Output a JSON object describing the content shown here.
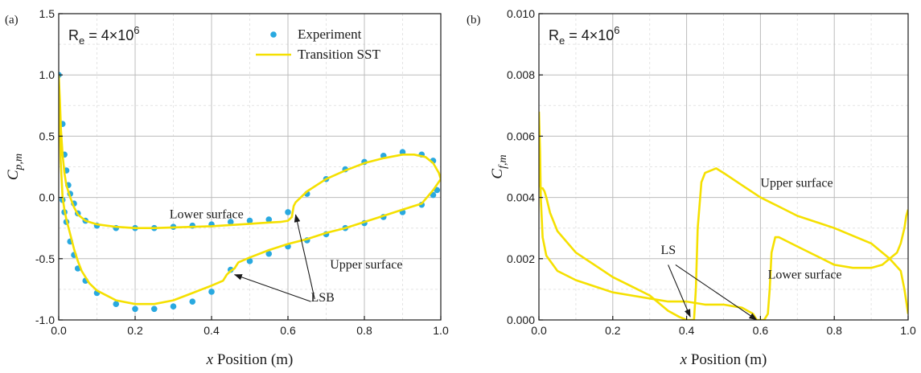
{
  "chart_data": [
    {
      "type": "line",
      "panel_label": "(a)",
      "annotation_re": "R_e = 4×10^6",
      "re_parts": {
        "base": "R",
        "sub": "e",
        "rest": " = 4×10",
        "sup": "6"
      },
      "xlabel_var": "x",
      "xlabel_rest": " Position (m)",
      "ylabel_var": "C",
      "ylabel_sub": "p,m",
      "xlim": [
        0.0,
        1.0
      ],
      "ylim": [
        -1.0,
        1.5
      ],
      "xticks": [
        0.0,
        0.2,
        0.4,
        0.6,
        0.8,
        1.0
      ],
      "xtick_labels": [
        "0.0",
        "0.2",
        "0.4",
        "0.6",
        "0.8",
        "1.0"
      ],
      "yticks": [
        -1.0,
        -0.5,
        0.0,
        0.5,
        1.0,
        1.5
      ],
      "ytick_labels": [
        "-1.0",
        "-0.5",
        "0.0",
        "0.5",
        "1.0",
        "1.5"
      ],
      "grid": true,
      "legend_position": "top-right",
      "series": [
        {
          "name": "Experiment",
          "kind": "scatter",
          "color": "#29a9e0",
          "x": [
            0.0,
            0.01,
            0.015,
            0.02,
            0.025,
            0.03,
            0.04,
            0.05,
            0.07,
            0.1,
            0.15,
            0.2,
            0.25,
            0.3,
            0.35,
            0.4,
            0.45,
            0.5,
            0.55,
            0.6,
            0.65,
            0.7,
            0.75,
            0.8,
            0.85,
            0.9,
            0.95,
            0.98,
            0.99,
            0.01,
            0.015,
            0.02,
            0.03,
            0.04,
            0.05,
            0.07,
            0.1,
            0.15,
            0.2,
            0.25,
            0.3,
            0.35,
            0.4,
            0.45,
            0.5,
            0.55,
            0.6,
            0.65,
            0.7,
            0.75,
            0.8,
            0.85,
            0.9,
            0.95,
            0.98
          ],
          "y": [
            1.0,
            0.6,
            0.35,
            0.22,
            0.1,
            0.03,
            -0.05,
            -0.13,
            -0.19,
            -0.23,
            -0.25,
            -0.25,
            -0.25,
            -0.24,
            -0.23,
            -0.22,
            -0.2,
            -0.19,
            -0.18,
            -0.12,
            0.03,
            0.15,
            0.23,
            0.29,
            0.34,
            0.37,
            0.35,
            0.3,
            0.06,
            -0.02,
            -0.12,
            -0.2,
            -0.36,
            -0.47,
            -0.58,
            -0.68,
            -0.78,
            -0.87,
            -0.91,
            -0.91,
            -0.89,
            -0.85,
            -0.77,
            -0.59,
            -0.52,
            -0.46,
            -0.4,
            -0.35,
            -0.3,
            -0.25,
            -0.21,
            -0.16,
            -0.12,
            -0.06,
            0.02
          ]
        },
        {
          "name": "Transition SST",
          "kind": "line",
          "color": "#f5e000",
          "x": [
            0.0,
            0.003,
            0.006,
            0.01,
            0.015,
            0.02,
            0.03,
            0.04,
            0.05,
            0.07,
            0.1,
            0.15,
            0.2,
            0.25,
            0.3,
            0.35,
            0.4,
            0.45,
            0.5,
            0.55,
            0.58,
            0.6,
            0.61,
            0.615,
            0.62,
            0.65,
            0.7,
            0.75,
            0.8,
            0.85,
            0.9,
            0.93,
            0.96,
            0.98,
            0.995,
            1.0,
            0.98,
            0.95,
            0.9,
            0.85,
            0.8,
            0.75,
            0.7,
            0.65,
            0.6,
            0.55,
            0.5,
            0.47,
            0.46,
            0.45,
            0.44,
            0.43,
            0.4,
            0.35,
            0.3,
            0.25,
            0.2,
            0.15,
            0.1,
            0.08,
            0.06,
            0.05,
            0.04,
            0.03,
            0.02,
            0.015,
            0.01,
            0.005,
            0.0
          ],
          "y": [
            1.0,
            0.8,
            0.55,
            0.35,
            0.2,
            0.1,
            0.0,
            -0.08,
            -0.14,
            -0.19,
            -0.22,
            -0.24,
            -0.25,
            -0.25,
            -0.245,
            -0.24,
            -0.235,
            -0.225,
            -0.215,
            -0.205,
            -0.2,
            -0.19,
            -0.16,
            -0.07,
            -0.04,
            0.05,
            0.15,
            0.22,
            0.28,
            0.32,
            0.35,
            0.35,
            0.33,
            0.28,
            0.2,
            0.15,
            0.06,
            -0.05,
            -0.1,
            -0.15,
            -0.2,
            -0.25,
            -0.29,
            -0.34,
            -0.38,
            -0.43,
            -0.49,
            -0.53,
            -0.58,
            -0.6,
            -0.63,
            -0.68,
            -0.72,
            -0.78,
            -0.84,
            -0.87,
            -0.87,
            -0.84,
            -0.76,
            -0.7,
            -0.6,
            -0.52,
            -0.42,
            -0.3,
            -0.18,
            -0.1,
            0.0,
            0.3,
            1.0
          ]
        }
      ],
      "annotations": [
        {
          "text": "Lower surface",
          "x": 0.29,
          "y": -0.17
        },
        {
          "text": "Upper surface",
          "x": 0.71,
          "y": -0.58
        },
        {
          "text": "LSB",
          "x": 0.66,
          "y": -0.85,
          "arrows": [
            {
              "from": [
                0.67,
                -0.83
              ],
              "to": [
                0.62,
                -0.14
              ]
            },
            {
              "from": [
                0.66,
                -0.85
              ],
              "to": [
                0.46,
                -0.63
              ]
            }
          ]
        }
      ]
    },
    {
      "type": "line",
      "panel_label": "(b)",
      "annotation_re": "R_e = 4×10^6",
      "re_parts": {
        "base": "R",
        "sub": "e",
        "rest": " = 4×10",
        "sup": "6"
      },
      "xlabel_var": "x",
      "xlabel_rest": " Position (m)",
      "ylabel_var": "C",
      "ylabel_sub": "f,m",
      "xlim": [
        0.0,
        1.0
      ],
      "ylim": [
        0.0,
        0.01
      ],
      "xticks": [
        0.0,
        0.2,
        0.4,
        0.6,
        0.8,
        1.0
      ],
      "xtick_labels": [
        "0.0",
        "0.2",
        "0.4",
        "0.6",
        "0.8",
        "1.0"
      ],
      "yticks": [
        0.0,
        0.002,
        0.004,
        0.006,
        0.008,
        0.01
      ],
      "ytick_labels": [
        "0.000",
        "0.002",
        "0.004",
        "0.006",
        "0.008",
        "0.010"
      ],
      "grid": true,
      "series": [
        {
          "name": "",
          "kind": "line",
          "color": "#f5e000",
          "x": [
            0.0,
            0.002,
            0.005,
            0.01,
            0.015,
            0.02,
            0.03,
            0.05,
            0.1,
            0.15,
            0.2,
            0.25,
            0.3,
            0.35,
            0.38,
            0.4,
            0.41,
            0.42,
            0.425,
            0.43,
            0.44,
            0.45,
            0.47,
            0.48,
            0.5,
            0.55,
            0.6,
            0.65,
            0.7,
            0.8,
            0.9,
            0.95,
            0.98,
            0.99,
            1.0
          ],
          "y": [
            0.006,
            0.0045,
            0.0043,
            0.0043,
            0.0042,
            0.004,
            0.0035,
            0.0029,
            0.0022,
            0.0018,
            0.0014,
            0.0011,
            0.0008,
            0.0003,
            0.0001,
            0.0,
            0.0,
            0.0,
            0.001,
            0.003,
            0.0045,
            0.0048,
            0.0049,
            0.00495,
            0.0048,
            0.0044,
            0.004,
            0.0037,
            0.0034,
            0.003,
            0.0025,
            0.002,
            0.0016,
            0.001,
            0.0002
          ]
        },
        {
          "name": "",
          "kind": "line",
          "color": "#f5e000",
          "x": [
            0.0,
            0.003,
            0.005,
            0.01,
            0.02,
            0.05,
            0.1,
            0.15,
            0.2,
            0.25,
            0.3,
            0.35,
            0.4,
            0.45,
            0.5,
            0.55,
            0.58,
            0.59,
            0.6,
            0.61,
            0.62,
            0.625,
            0.63,
            0.64,
            0.65,
            0.7,
            0.75,
            0.8,
            0.85,
            0.9,
            0.93,
            0.95,
            0.97,
            0.98,
            0.99,
            0.995,
            1.0
          ],
          "y": [
            0.0068,
            0.0055,
            0.004,
            0.0027,
            0.0021,
            0.0016,
            0.0013,
            0.0011,
            0.0009,
            0.0008,
            0.0007,
            0.0006,
            0.0006,
            0.0005,
            0.0005,
            0.0004,
            0.0002,
            0.0,
            0.0,
            0.0,
            0.0002,
            0.001,
            0.0022,
            0.0027,
            0.0027,
            0.0024,
            0.0021,
            0.0018,
            0.0017,
            0.0017,
            0.0018,
            0.002,
            0.0022,
            0.0025,
            0.003,
            0.0034,
            0.0036
          ]
        }
      ],
      "annotations": [
        {
          "text": "Upper surface",
          "x": 0.6,
          "y": 0.00435
        },
        {
          "text": "Lower surface",
          "x": 0.62,
          "y": 0.00135
        },
        {
          "text": "LS",
          "x": 0.33,
          "y": 0.00215,
          "arrows": [
            {
              "from": [
                0.35,
                0.0018
              ],
              "to": [
                0.41,
                0.0001
              ]
            },
            {
              "from": [
                0.37,
                0.0018
              ],
              "to": [
                0.59,
                0.0
              ]
            }
          ]
        }
      ]
    }
  ]
}
